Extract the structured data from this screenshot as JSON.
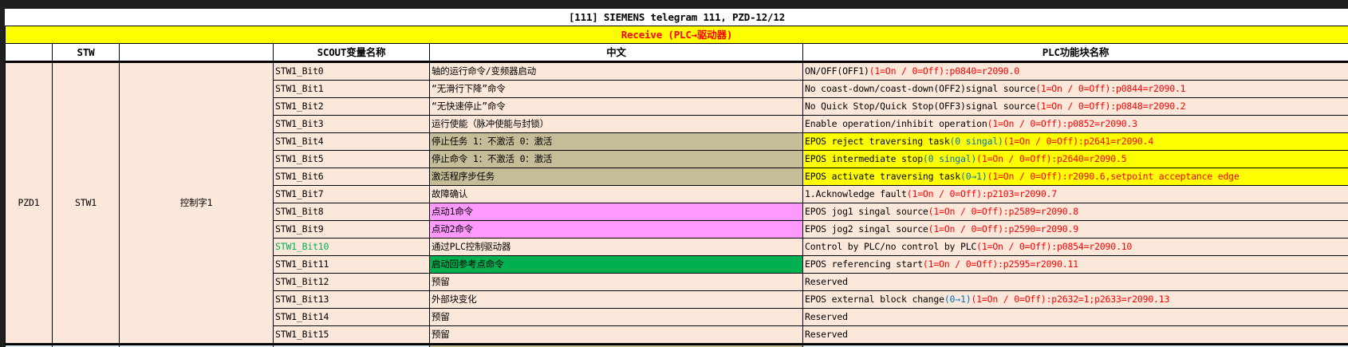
{
  "title": "[111] SIEMENS telegram 111, PZD-12/12",
  "direction": "Receive (PLC→驱动器)",
  "headers": [
    "",
    "STW",
    "",
    "SCOUT变量名称",
    "中文",
    "PLC功能块名称"
  ],
  "group": {
    "pzd": "PZD1",
    "stw": "STW1",
    "name": "控制字1"
  },
  "colors": {
    "background": "#fce8da",
    "tan": "#c4bd97",
    "pink": "#ff99ff",
    "green": "#00b050",
    "yellow": "#ffff00",
    "red": "#ff0000",
    "blue": "#0070c0"
  },
  "rows": [
    {
      "var": "STW1_Bit0",
      "cn": "轴的运行命令/变频器启动",
      "plc": [
        {
          "t": "ON/OFF(OFF1)",
          "c": "black"
        },
        {
          "t": "(1=On / 0=Off):p0840=r2090.0",
          "c": "red"
        }
      ]
    },
    {
      "var": "STW1_Bit1",
      "cn": "“无滑行下降”命令",
      "plc": [
        {
          "t": "No coast-down/coast-down(OFF2)signal source",
          "c": "black"
        },
        {
          "t": "(1=On / 0=Off):p0844=r2090.1",
          "c": "red"
        }
      ]
    },
    {
      "var": "STW1_Bit2",
      "cn": "“无快速停止”命令",
      "plc": [
        {
          "t": "No Quick Stop/Quick Stop(OFF3)signal source",
          "c": "black"
        },
        {
          "t": "(1=On / 0=Off):p0848=r2090.2",
          "c": "red"
        }
      ]
    },
    {
      "var": "STW1_Bit3",
      "cn": "运行使能（脉冲使能与封锁）",
      "plc": [
        {
          "t": "Enable operation/inhibit operation",
          "c": "black"
        },
        {
          "t": "(1=On / 0=Off):p0852=r2090.3",
          "c": "red"
        }
      ]
    },
    {
      "var": "STW1_Bit4",
      "cn": "停止任务 1：不激活 0：激活",
      "cnBg": "tan",
      "plcBg": "yellow",
      "plc": [
        {
          "t": "EPOS reject traversing task",
          "c": "black"
        },
        {
          "t": "(0 singal)",
          "c": "blue"
        },
        {
          "t": "(1=On / 0=Off):p2641=r2090.4",
          "c": "red"
        }
      ]
    },
    {
      "var": "STW1_Bit5",
      "cn": "停止命令 1：不激活 0：激活",
      "cnBg": "tan",
      "plcBg": "yellow",
      "plc": [
        {
          "t": "EPOS intermediate stop",
          "c": "black"
        },
        {
          "t": "(0 singal)",
          "c": "blue"
        },
        {
          "t": "(1=On / 0=Off):p2640=r2090.5",
          "c": "red"
        }
      ]
    },
    {
      "var": "STW1_Bit6",
      "cn": "激活程序步任务",
      "cnBg": "tan",
      "plcBg": "yellow",
      "plc": [
        {
          "t": "EPOS activate traversing task",
          "c": "black"
        },
        {
          "t": "(0→1)",
          "c": "blue"
        },
        {
          "t": "(1=On / 0=Off):r2090.6,setpoint acceptance edge",
          "c": "red"
        }
      ]
    },
    {
      "var": "STW1_Bit7",
      "cn": "故障确认",
      "plc": [
        {
          "t": "1.Acknowledge fault",
          "c": "black"
        },
        {
          "t": "(1=On / 0=Off):p2103=r2090.7",
          "c": "red"
        }
      ]
    },
    {
      "var": "STW1_Bit8",
      "cn": "点动1命令",
      "cnBg": "pink",
      "plc": [
        {
          "t": "EPOS jog1 singal source",
          "c": "black"
        },
        {
          "t": "(1=On / 0=Off):p2589=r2090.8",
          "c": "red"
        }
      ]
    },
    {
      "var": "STW1_Bit9",
      "cn": "点动2命令",
      "cnBg": "pink",
      "plc": [
        {
          "t": "EPOS jog2 singal source",
          "c": "black"
        },
        {
          "t": "(1=On / 0=Off):p2590=r2090.9",
          "c": "red"
        }
      ]
    },
    {
      "var": "STW1_Bit10",
      "varColor": "green",
      "cn": "通过PLC控制驱动器",
      "plc": [
        {
          "t": "Control by PLC/no control by PLC",
          "c": "black"
        },
        {
          "t": "(1=On / 0=Off):p0854=r2090.10",
          "c": "red"
        }
      ]
    },
    {
      "var": "STW1_Bit11",
      "cn": "启动回参考点命令",
      "cnBg": "green",
      "plc": [
        {
          "t": "EPOS referencing start",
          "c": "black"
        },
        {
          "t": "(1=On / 0=Off):p2595=r2090.11",
          "c": "red"
        }
      ]
    },
    {
      "var": "STW1_Bit12",
      "cn": "预留",
      "plc": [
        {
          "t": "Reserved",
          "c": "black"
        }
      ]
    },
    {
      "var": "STW1_Bit13",
      "cn": "外部块变化",
      "plc": [
        {
          "t": "EPOS external block change",
          "c": "black"
        },
        {
          "t": "(0→1)",
          "c": "blue"
        },
        {
          "t": "(1=On / 0=Off):p2632=1;p2633=r2090.13",
          "c": "red"
        }
      ]
    },
    {
      "var": "STW1_Bit14",
      "cn": "预留",
      "plc": [
        {
          "t": "Reserved",
          "c": "black"
        }
      ]
    },
    {
      "var": "STW1_Bit15",
      "cn": "预留",
      "plc": [
        {
          "t": "Reserved",
          "c": "black"
        }
      ]
    }
  ]
}
